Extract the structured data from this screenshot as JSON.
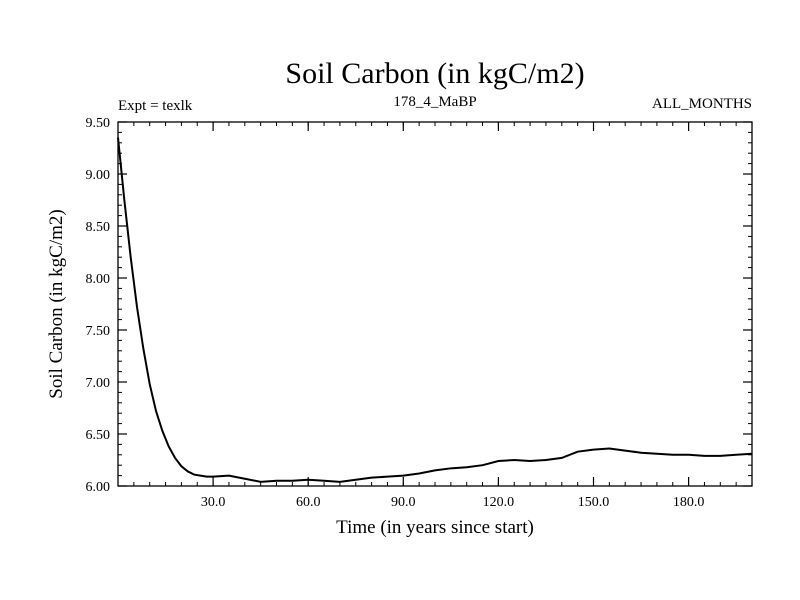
{
  "chart_data": {
    "type": "line",
    "title": "Soil Carbon (in kgC/m2)",
    "subtitle_left": "Expt = texlk",
    "subtitle_center": "178_4_MaBP",
    "subtitle_right": "ALL_MONTHS",
    "xlabel": "Time (in years since start)",
    "ylabel": "Soil Carbon (in kgC/m2)",
    "xlim": [
      0,
      200
    ],
    "ylim": [
      6.0,
      9.5
    ],
    "xticks": [
      30,
      60,
      90,
      120,
      150,
      180
    ],
    "xtick_labels": [
      "30.0",
      "60.0",
      "90.0",
      "120.0",
      "150.0",
      "180.0"
    ],
    "yticks": [
      6.0,
      6.5,
      7.0,
      7.5,
      8.0,
      8.5,
      9.0,
      9.5
    ],
    "ytick_labels": [
      "6.00",
      "6.50",
      "7.00",
      "7.50",
      "8.00",
      "8.50",
      "9.00",
      "9.50"
    ],
    "grid": false,
    "series": [
      {
        "name": "Soil Carbon",
        "x": [
          0,
          2,
          4,
          6,
          8,
          10,
          12,
          14,
          16,
          18,
          20,
          22,
          24,
          26,
          28,
          30,
          35,
          40,
          45,
          50,
          55,
          60,
          65,
          70,
          75,
          80,
          85,
          90,
          95,
          100,
          105,
          110,
          115,
          120,
          125,
          130,
          135,
          140,
          145,
          150,
          155,
          160,
          165,
          170,
          175,
          180,
          185,
          190,
          195,
          200
        ],
        "values": [
          9.35,
          8.75,
          8.2,
          7.72,
          7.32,
          6.98,
          6.72,
          6.53,
          6.38,
          6.27,
          6.19,
          6.14,
          6.11,
          6.1,
          6.09,
          6.09,
          6.1,
          6.07,
          6.04,
          6.05,
          6.05,
          6.06,
          6.05,
          6.04,
          6.06,
          6.08,
          6.09,
          6.1,
          6.12,
          6.15,
          6.17,
          6.18,
          6.2,
          6.24,
          6.25,
          6.24,
          6.25,
          6.27,
          6.33,
          6.35,
          6.36,
          6.34,
          6.32,
          6.31,
          6.3,
          6.3,
          6.29,
          6.29,
          6.3,
          6.31
        ]
      }
    ]
  }
}
